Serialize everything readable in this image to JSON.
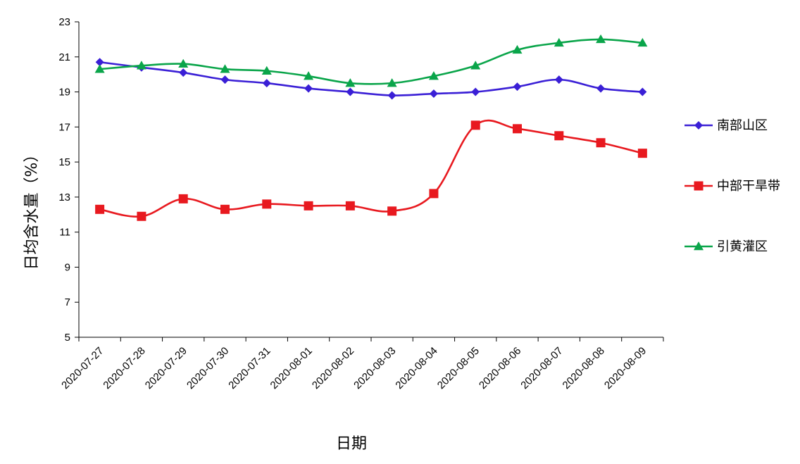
{
  "chart_data": {
    "type": "line",
    "title": "",
    "xlabel": "日期",
    "ylabel": "日均含水量（%）",
    "ylim": [
      5,
      23
    ],
    "yticks": [
      5,
      7,
      9,
      11,
      13,
      15,
      17,
      19,
      21,
      23
    ],
    "grid": false,
    "legend_position": "right",
    "categories": [
      "2020-07-27",
      "2020-07-28",
      "2020-07-29",
      "2020-07-30",
      "2020-07-31",
      "2020-08-01",
      "2020-08-02",
      "2020-08-03",
      "2020-08-04",
      "2020-08-05",
      "2020-08-06",
      "2020-08-07",
      "2020-08-08",
      "2020-08-09"
    ],
    "series": [
      {
        "name": "南部山区",
        "color": "#3a1fd6",
        "marker": "diamond",
        "values": [
          20.7,
          20.4,
          20.1,
          19.7,
          19.5,
          19.2,
          19.0,
          18.8,
          18.9,
          19.0,
          19.3,
          19.7,
          19.2,
          19.0
        ]
      },
      {
        "name": "中部干旱带",
        "color": "#e8191f",
        "marker": "square",
        "values": [
          12.3,
          11.9,
          12.9,
          12.3,
          12.6,
          12.5,
          12.5,
          12.2,
          13.2,
          17.1,
          16.9,
          16.5,
          16.1,
          15.5
        ]
      },
      {
        "name": "引黄灌区",
        "color": "#0aa54a",
        "marker": "triangle",
        "values": [
          20.3,
          20.5,
          20.6,
          20.3,
          20.2,
          19.9,
          19.5,
          19.5,
          19.9,
          20.5,
          21.4,
          21.8,
          22.0,
          21.8
        ]
      }
    ]
  }
}
